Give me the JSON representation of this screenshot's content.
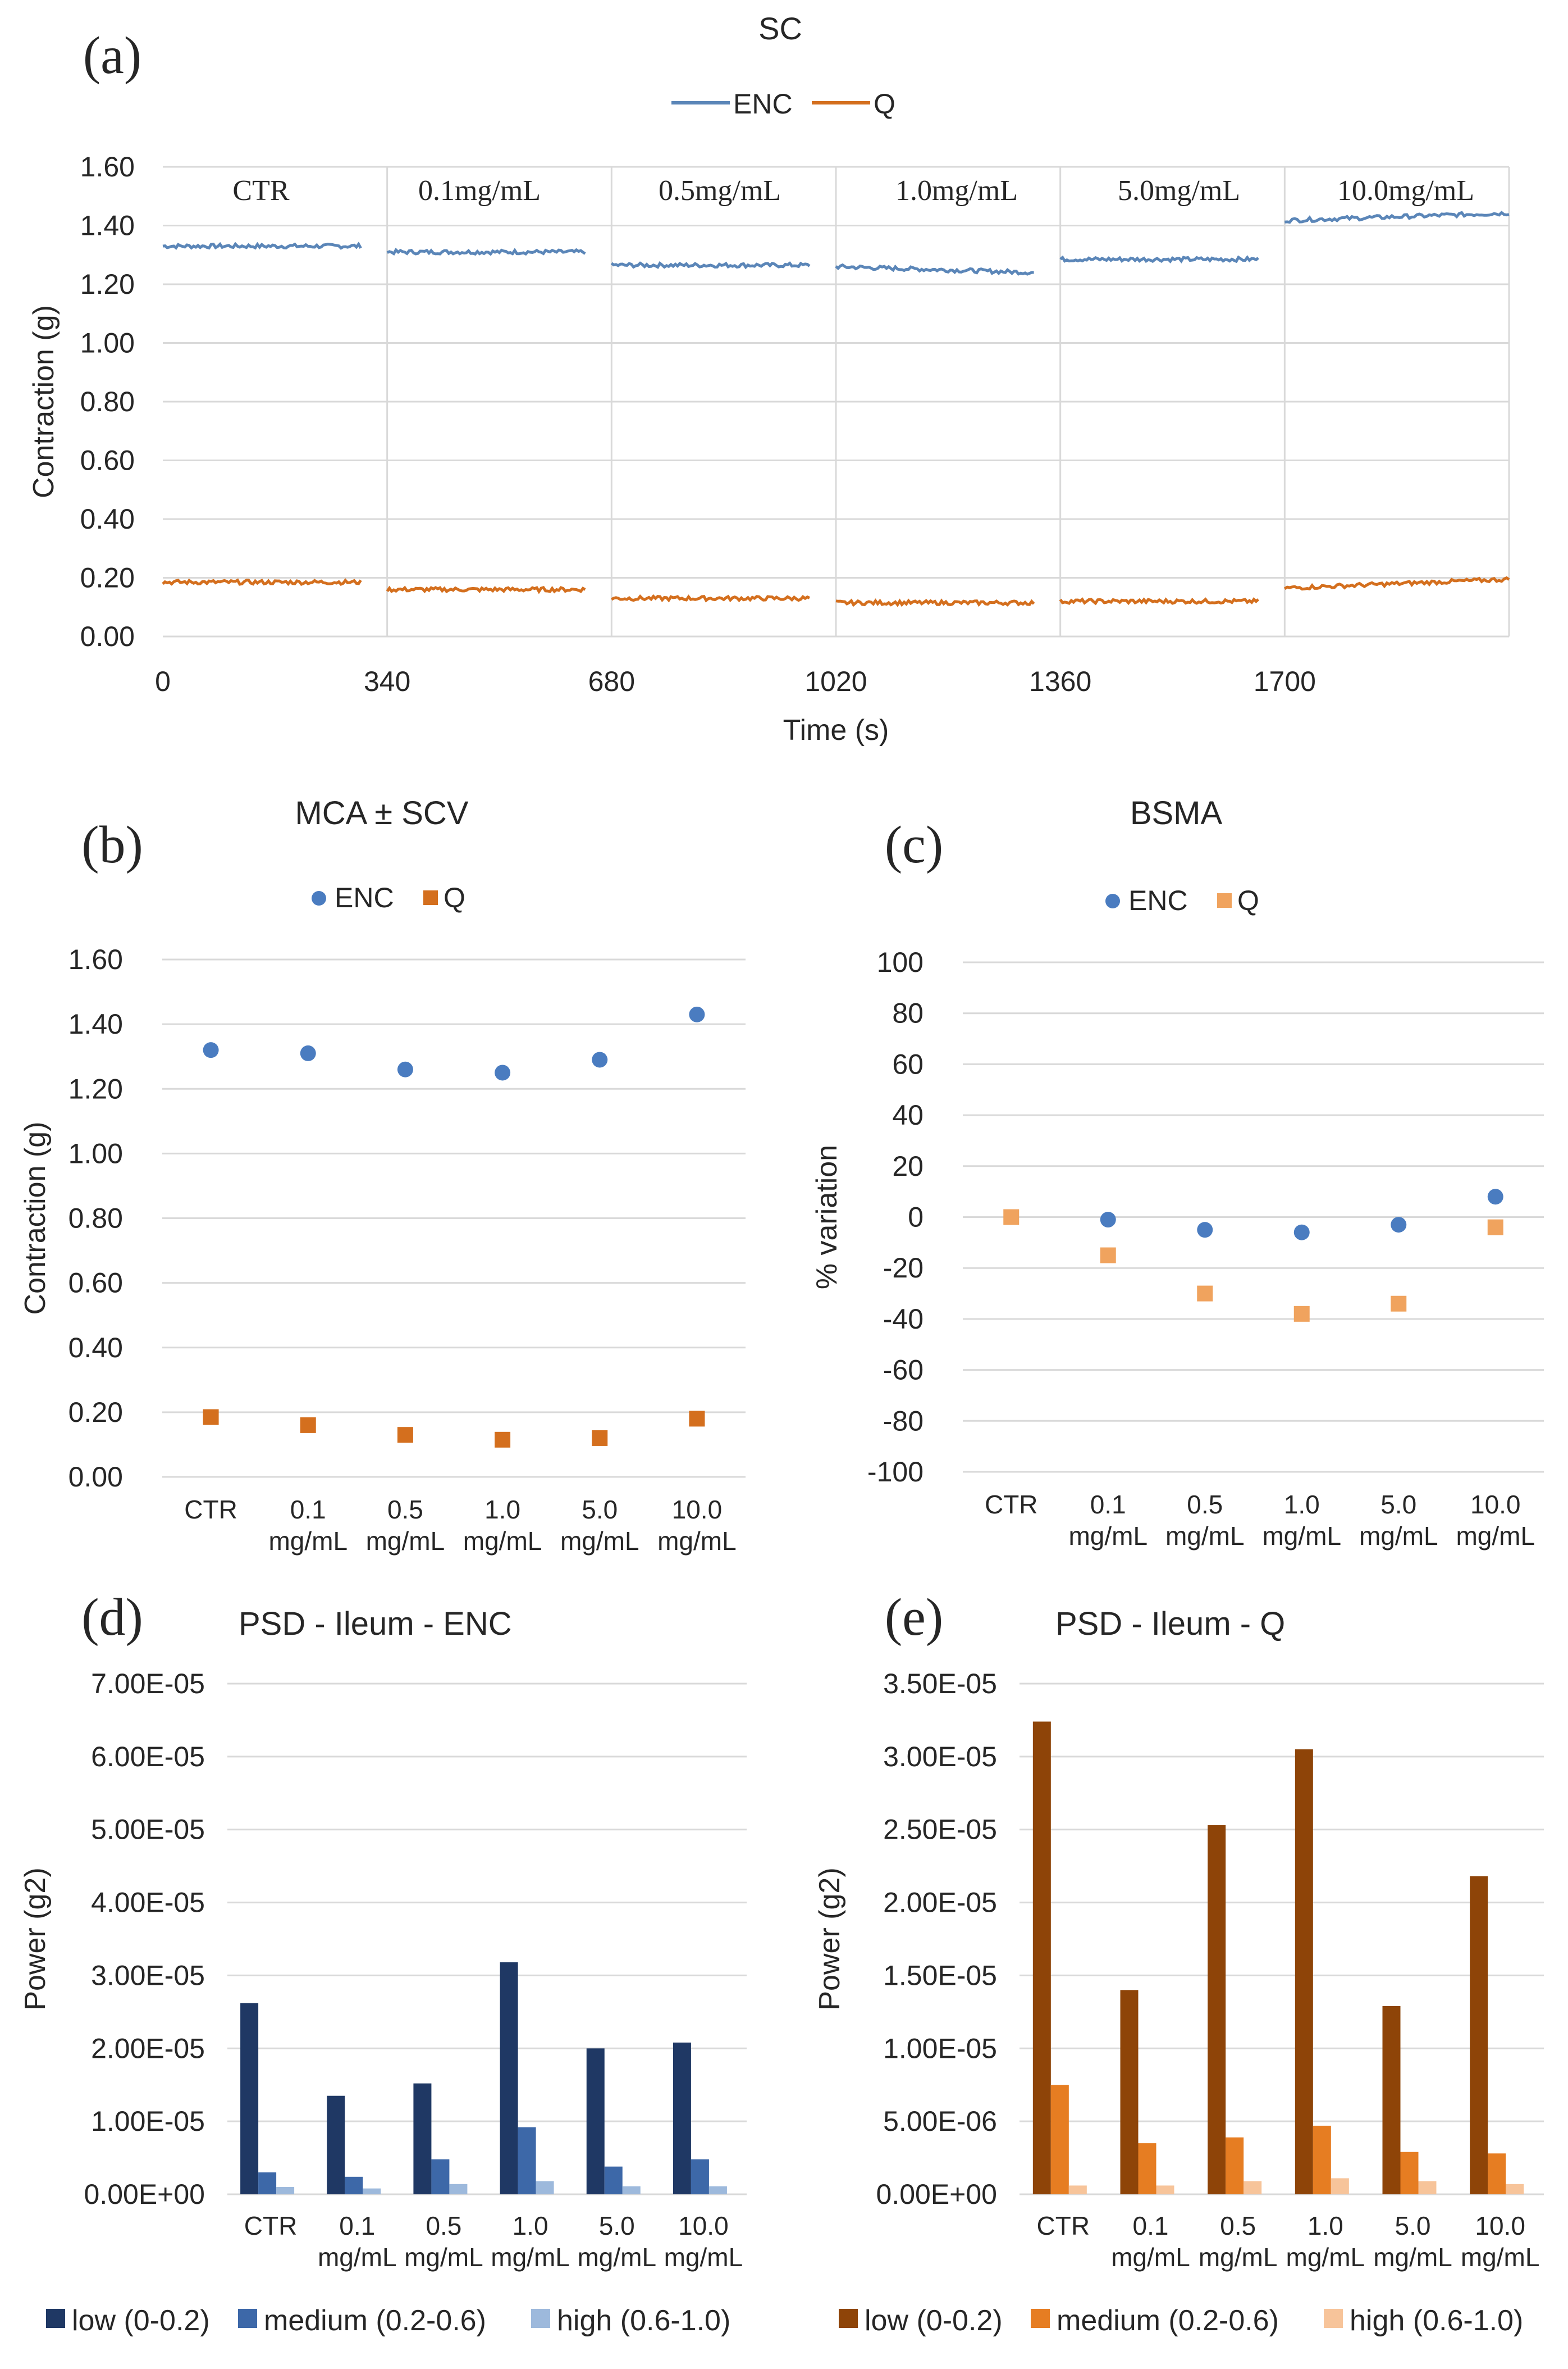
{
  "chart_data": [
    {
      "panel": "(a)",
      "type": "line",
      "title": "SC",
      "xlabel": "Time (s)",
      "ylabel": "Contraction (g)",
      "ylim": [
        0,
        1.6
      ],
      "xlim": [
        0,
        2040
      ],
      "x_ticks": [
        "0",
        "340",
        "680",
        "1020",
        "1360",
        "1700"
      ],
      "y_ticks": [
        "0.00",
        "0.20",
        "0.40",
        "0.60",
        "0.80",
        "1.00",
        "1.20",
        "1.40",
        "1.60"
      ],
      "segment_labels": [
        "CTR",
        "0.1mg/mL",
        "0.5mg/mL",
        "1.0mg/mL",
        "5.0mg/mL",
        "10.0mg/mL"
      ],
      "segment_starts": [
        0,
        340,
        680,
        1020,
        1360,
        1700
      ],
      "segment_ends": [
        300,
        640,
        980,
        1320,
        1660,
        2040
      ],
      "legend": [
        "ENC",
        "Q"
      ],
      "series": [
        {
          "name": "ENC",
          "color": "#5b86b8",
          "values": [
            1.33,
            1.31,
            1.265,
            1.25,
            1.285,
            1.43
          ]
        },
        {
          "name": "Q",
          "color": "#d46f1e",
          "values": [
            0.185,
            0.16,
            0.13,
            0.115,
            0.12,
            0.18
          ]
        }
      ]
    },
    {
      "panel": "(b)",
      "type": "scatter",
      "title": "MCA ± SCV",
      "ylabel": "Contraction (g)",
      "ylim": [
        0,
        1.6
      ],
      "categories": [
        "CTR",
        "0.1\nmg/mL",
        "0.5\nmg/mL",
        "1.0\nmg/mL",
        "5.0\nmg/mL",
        "10.0\nmg/mL"
      ],
      "y_ticks": [
        "0.00",
        "0.20",
        "0.40",
        "0.60",
        "0.80",
        "1.00",
        "1.20",
        "1.40",
        "1.60"
      ],
      "legend": [
        "ENC",
        "Q"
      ],
      "series": [
        {
          "name": "ENC",
          "color": "#4a7cc0",
          "values": [
            1.32,
            1.31,
            1.26,
            1.25,
            1.29,
            1.43
          ]
        },
        {
          "name": "Q",
          "color": "#d46f1e",
          "values": [
            0.185,
            0.16,
            0.13,
            0.115,
            0.12,
            0.18
          ]
        }
      ]
    },
    {
      "panel": "(c)",
      "type": "scatter",
      "title": "BSMA",
      "ylabel": "% variation",
      "ylim": [
        -100,
        100
      ],
      "categories": [
        "CTR",
        "0.1\nmg/mL",
        "0.5\nmg/mL",
        "1.0\nmg/mL",
        "5.0\nmg/mL",
        "10.0\nmg/mL"
      ],
      "y_ticks": [
        "-100",
        "-80",
        "-60",
        "-40",
        "-20",
        "0",
        "20",
        "40",
        "60",
        "80",
        "100"
      ],
      "legend": [
        "ENC",
        "Q"
      ],
      "series": [
        {
          "name": "ENC",
          "color": "#4a7cc0",
          "values": [
            null,
            -1,
            -5,
            -6,
            -3,
            8
          ]
        },
        {
          "name": "Q",
          "color": "#f0a35e",
          "values": [
            0,
            -15,
            -30,
            -38,
            -34,
            -4
          ]
        }
      ]
    },
    {
      "panel": "(d)",
      "type": "bar",
      "title": "PSD - Ileum - ENC",
      "ylabel": "Power (g2)",
      "ylim": [
        0,
        7e-05
      ],
      "categories": [
        "CTR",
        "0.1\nmg/mL",
        "0.5\nmg/mL",
        "1.0\nmg/mL",
        "5.0\nmg/mL",
        "10.0\nmg/mL"
      ],
      "y_ticks": [
        "0.00E+00",
        "1.00E-05",
        "2.00E-05",
        "3.00E-05",
        "4.00E-05",
        "5.00E-05",
        "6.00E-05",
        "7.00E-05"
      ],
      "series": [
        {
          "name": "low (0-0.2)",
          "color": "#1f3864",
          "values": [
            2.62e-05,
            1.35e-05,
            1.52e-05,
            3.18e-05,
            2e-05,
            2.08e-05
          ]
        },
        {
          "name": "medium (0.2-0.6)",
          "color": "#3d68a8",
          "values": [
            3e-06,
            2.4e-06,
            4.8e-06,
            9.2e-06,
            3.8e-06,
            4.8e-06
          ]
        },
        {
          "name": "high (0.6-1.0)",
          "color": "#9db9dc",
          "values": [
            1e-06,
            8e-07,
            1.4e-06,
            1.8e-06,
            1.1e-06,
            1.1e-06
          ]
        }
      ]
    },
    {
      "panel": "(e)",
      "type": "bar",
      "title": "PSD - Ileum - Q",
      "ylabel": "Power (g2)",
      "ylim": [
        0,
        3.5e-05
      ],
      "categories": [
        "CTR",
        "0.1\nmg/mL",
        "0.5\nmg/mL",
        "1.0\nmg/mL",
        "5.0\nmg/mL",
        "10.0\nmg/mL"
      ],
      "y_ticks": [
        "0.00E+00",
        "5.00E-06",
        "1.00E-05",
        "1.50E-05",
        "2.00E-05",
        "2.50E-05",
        "3.00E-05",
        "3.50E-05"
      ],
      "series": [
        {
          "name": "low (0-0.2)",
          "color": "#8e4408",
          "values": [
            3.24e-05,
            1.4e-05,
            2.53e-05,
            3.05e-05,
            1.29e-05,
            2.18e-05
          ]
        },
        {
          "name": "medium (0.2-0.6)",
          "color": "#e67d22",
          "values": [
            7.5e-06,
            3.5e-06,
            3.9e-06,
            4.7e-06,
            2.9e-06,
            2.8e-06
          ]
        },
        {
          "name": "high (0.6-1.0)",
          "color": "#f7c49a",
          "values": [
            6e-07,
            6e-07,
            9e-07,
            1.1e-06,
            9e-07,
            7e-07
          ]
        }
      ]
    }
  ]
}
